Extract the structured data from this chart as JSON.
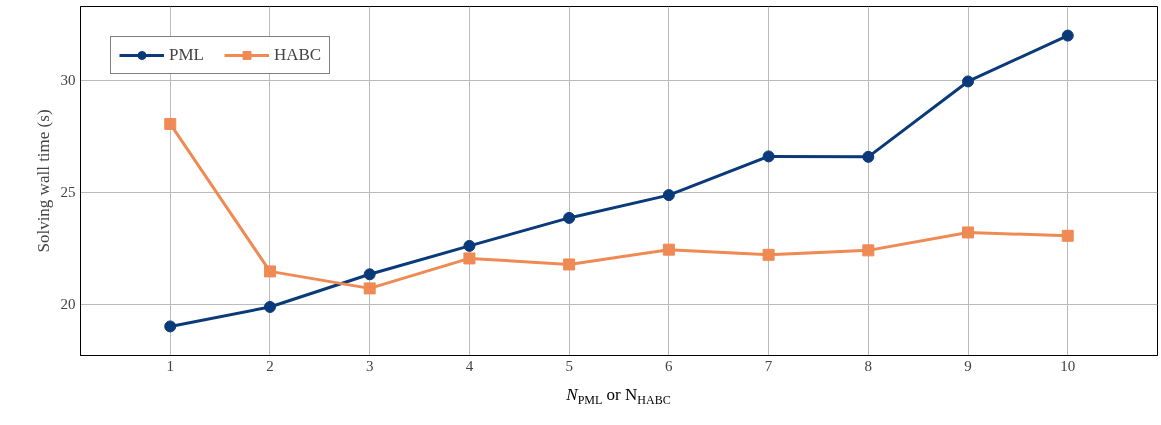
{
  "chart_data": {
    "type": "line",
    "xlabel": "N$_{PML}$ or N$_{HABC}$",
    "ylabel": "Solving wall time (s)",
    "x": [
      1,
      2,
      3,
      4,
      5,
      6,
      7,
      8,
      9,
      10
    ],
    "series": [
      {
        "name": "PML",
        "color": "#0b3a7a",
        "marker": "circle",
        "values": [
          19.0,
          19.87,
          21.33,
          22.6,
          23.85,
          24.87,
          26.6,
          26.58,
          29.95,
          32.0
        ]
      },
      {
        "name": "HABC",
        "color": "#ef8a55",
        "marker": "square",
        "values": [
          28.05,
          21.46,
          20.7,
          22.04,
          21.77,
          22.43,
          22.2,
          22.4,
          23.2,
          23.05
        ]
      }
    ],
    "xlim": [
      0.1,
      10.9
    ],
    "ylim": [
      17.7,
      33.3
    ],
    "xticks": [
      1,
      2,
      3,
      4,
      5,
      6,
      7,
      8,
      9,
      10
    ],
    "yticks": [
      20,
      25,
      30
    ],
    "grid": true,
    "legend": "top left",
    "line_style": "solid"
  }
}
